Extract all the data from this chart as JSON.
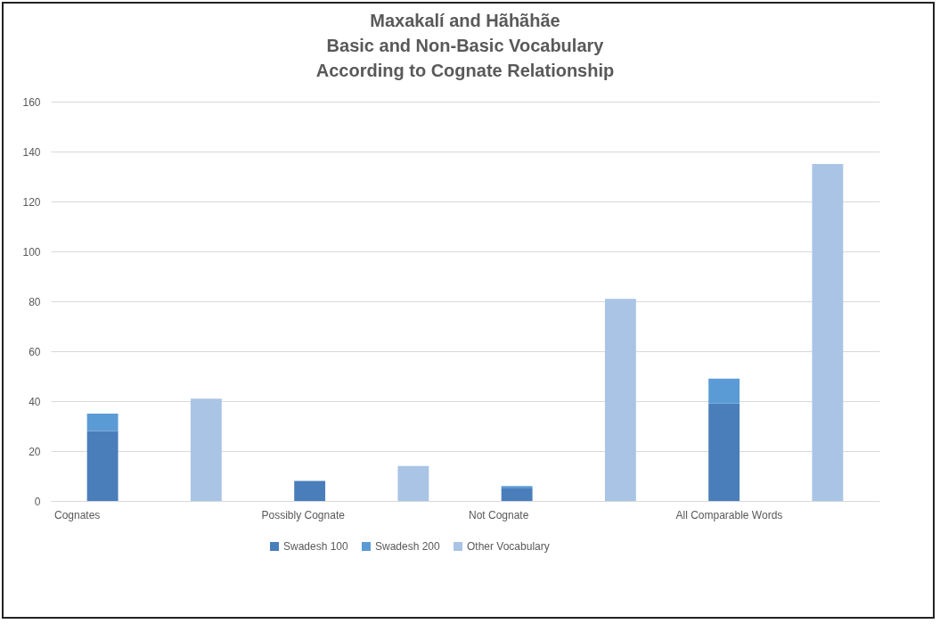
{
  "chart_data": {
    "type": "bar",
    "title": "Maxakalí and Hãhãhãe\nBasic and Non-Basic Vocabulary\nAccording to Cognate Relationship",
    "categories": [
      "Cognates",
      null,
      "Possibly Cognate",
      null,
      "Not Cognate",
      null,
      "All Comparable Words",
      null
    ],
    "stacked": true,
    "series": [
      {
        "name": "Swadesh 100",
        "color": "#4a7ebb",
        "values": [
          28,
          null,
          8,
          null,
          5,
          null,
          39,
          null
        ]
      },
      {
        "name": "Swadesh 200",
        "color": "#5b9bd5",
        "values": [
          7,
          null,
          0,
          null,
          1,
          null,
          10,
          null
        ]
      },
      {
        "name": "Other Vocabulary",
        "color": "#a9c4e4",
        "values": [
          null,
          41,
          null,
          14,
          null,
          81,
          null,
          135
        ]
      }
    ],
    "ylim": [
      0,
      160
    ],
    "yticks": [
      0,
      20,
      40,
      60,
      80,
      100,
      120,
      140,
      160
    ],
    "grid": "y",
    "legend": "bottom"
  }
}
